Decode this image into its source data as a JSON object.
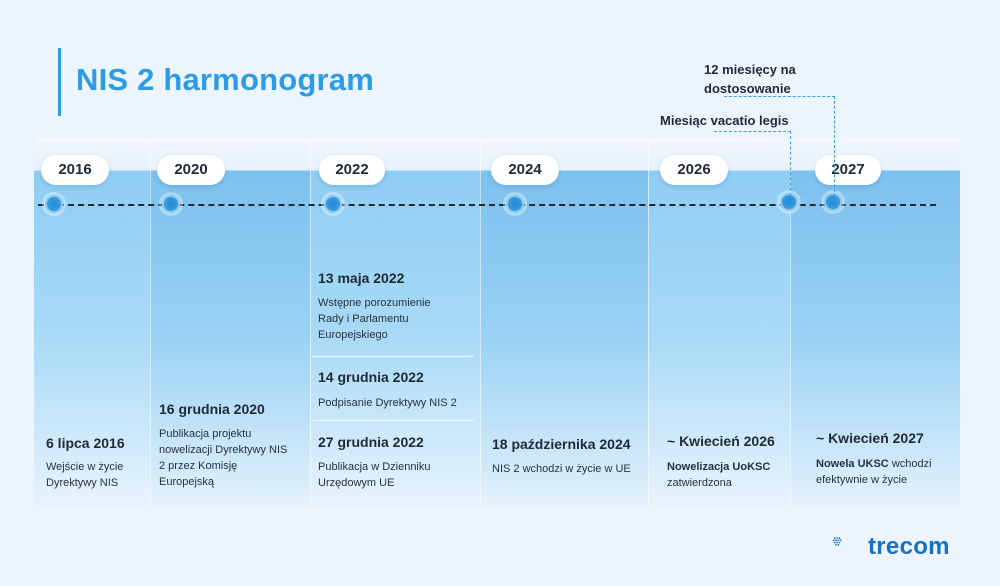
{
  "title": "NIS 2 harmonogram",
  "years": [
    "2016",
    "2020",
    "2022",
    "2024",
    "2026",
    "2027"
  ],
  "annotations": {
    "adaptation": "12 miesięcy na dostosowanie",
    "vacatio": "Miesiąc vacatio legis"
  },
  "events": {
    "e2016": {
      "date": "6 lipca 2016",
      "desc": "Wejście w życie Dyrektywy NIS"
    },
    "e2020": {
      "date": "16 grudnia 2020",
      "desc": "Publikacja projektu nowelizacji Dyrektywy NIS 2 przez Komisję Europejską"
    },
    "e2022a": {
      "date": "13 maja 2022",
      "desc": "Wstępne porozumienie Rady i Parlamentu Europejskiego"
    },
    "e2022b": {
      "date": "14 grudnia 2022",
      "desc": "Podpisanie Dyrektywy NIS 2"
    },
    "e2022c": {
      "date": "27 grudnia 2022",
      "desc": "Publikacja w Dzienniku Urzędowym UE"
    },
    "e2024": {
      "date": "18 października 2024",
      "desc": "NIS 2 wchodzi w życie w UE"
    },
    "e2026": {
      "date": "~ Kwiecień 2026",
      "desc_bold": "Nowelizacja UoKSC",
      "desc_rest": "zatwierdzona"
    },
    "e2027": {
      "date": "~ Kwiecień 2027",
      "desc_pre": "Nowela",
      "desc_bold": "UKSC",
      "desc_rest": "wchodzi efektywnie w życie"
    }
  },
  "logo": {
    "text": "trecom",
    "color": "#1572c4"
  },
  "colors": {
    "accent": "#2d9be6",
    "background": "#ecf5fd"
  }
}
